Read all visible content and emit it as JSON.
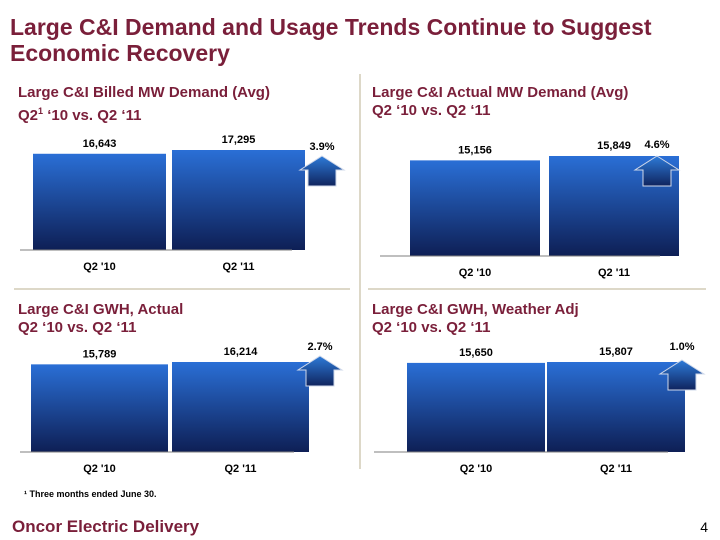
{
  "title": "Large C&I Demand and Usage Trends Continue to Suggest Economic Recovery",
  "footnote": "¹ Three months ended June 30.",
  "footer": {
    "company": "Oncor Electric Delivery",
    "page": "4"
  },
  "colors": {
    "title": "#7a1f3a",
    "bar_top": "#2a6fd6",
    "bar_bottom": "#0e1f55",
    "arrow_top": "#2e7bd9",
    "arrow_bottom": "#10245e"
  },
  "chart_data": [
    {
      "type": "bar",
      "title_line1": "Large C&I Billed MW Demand (Avg)",
      "title_line2_prefix": "Q2",
      "title_line2_sup": "1",
      "title_line2_suffix": " ‘10 vs. Q2 ‘11",
      "categories": [
        "Q2 '10",
        "Q2 '11"
      ],
      "values": [
        16643,
        17295
      ],
      "value_labels": [
        "16,643",
        "17,295"
      ],
      "change": "3.9%"
    },
    {
      "type": "bar",
      "title_line1": "Large C&I Actual MW Demand (Avg)",
      "title_line2_prefix": "Q2 ‘10 vs. Q2 ‘11",
      "title_line2_sup": "",
      "title_line2_suffix": "",
      "categories": [
        "Q2 '10",
        "Q2 '11"
      ],
      "values": [
        15156,
        15849
      ],
      "value_labels": [
        "15,156",
        "15,849"
      ],
      "change": "4.6%"
    },
    {
      "type": "bar",
      "title_line1": "Large C&I GWH, Actual",
      "title_line2_prefix": "Q2 ‘10 vs. Q2 ‘11",
      "title_line2_sup": "",
      "title_line2_suffix": "",
      "categories": [
        "Q2 '10",
        "Q2 '11"
      ],
      "values": [
        15789,
        16214
      ],
      "value_labels": [
        "15,789",
        "16,214"
      ],
      "change": "2.7%"
    },
    {
      "type": "bar",
      "title_line1": "Large C&I GWH, Weather Adj",
      "title_line2_prefix": "Q2 ‘10 vs. Q2 ‘11",
      "title_line2_sup": "",
      "title_line2_suffix": "",
      "categories": [
        "Q2 '10",
        "Q2 '11"
      ],
      "values": [
        15650,
        15807
      ],
      "value_labels": [
        "15,650",
        "15,807"
      ],
      "change": "1.0%"
    }
  ]
}
